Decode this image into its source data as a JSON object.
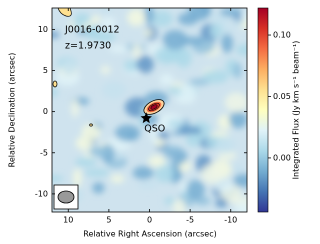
{
  "chart_data": {
    "type": "image",
    "title": "J0016-0012",
    "subtitle": "z=1.9730",
    "x_label": "Relative Right Ascension (arcsec)",
    "y_label": "Relative Declination (arcsec)",
    "xlim": [
      12,
      -12
    ],
    "ylim": [
      -12.2,
      12.6
    ],
    "xticks": [
      10,
      5,
      0,
      -5,
      -10
    ],
    "yticks": [
      -10,
      -5,
      0,
      5,
      10
    ],
    "markers": [
      {
        "label": "QSO",
        "x": 0.4,
        "y": -0.8,
        "color": "#000000"
      }
    ],
    "colorbar": {
      "label": "Integrated Flux (Jy km s⁻¹ beam⁻¹)",
      "lim": [
        -0.044,
        0.122
      ],
      "ticks": [
        {
          "value": 0,
          "label": "0.00"
        },
        {
          "value": 0.05,
          "label": "0.05"
        },
        {
          "value": 0.1,
          "label": "0.10"
        }
      ],
      "colormap": [
        "#313695",
        "#4575b4",
        "#74add1",
        "#abd9e9",
        "#e0f3f8",
        "#ffffbf",
        "#fee090",
        "#fdae61",
        "#f46d43",
        "#d73027",
        "#a50026"
      ]
    }
  }
}
